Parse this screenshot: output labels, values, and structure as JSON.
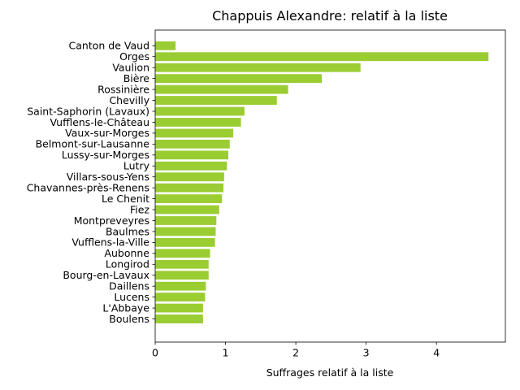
{
  "chart_data": {
    "type": "bar",
    "orientation": "horizontal",
    "title": "Chappuis Alexandre: relatif à la liste",
    "xlabel": "Suffrages relatif à la liste",
    "ylabel": "",
    "xlim": [
      0,
      4.98
    ],
    "xticks": [
      0,
      1,
      2,
      3,
      4
    ],
    "grid": false,
    "bar_color": "#9acd32",
    "categories": [
      "Canton de Vaud",
      "Orges",
      "Vaulion",
      "Bière",
      "Rossinière",
      "Chevilly",
      "Saint-Saphorin (Lavaux)",
      "Vufflens-le-Château",
      "Vaux-sur-Morges",
      "Belmont-sur-Lausanne",
      "Lussy-sur-Morges",
      "Lutry",
      "Villars-sous-Yens",
      "Chavannes-près-Renens",
      "Le Chenit",
      "Fiez",
      "Montpreveyres",
      "Baulmes",
      "Vufflens-la-Ville",
      "Aubonne",
      "Longirod",
      "Bourg-en-Lavaux",
      "Daillens",
      "Lucens",
      "L'Abbaye",
      "Boulens"
    ],
    "values": [
      0.29,
      4.74,
      2.92,
      2.37,
      1.89,
      1.73,
      1.27,
      1.22,
      1.11,
      1.06,
      1.04,
      1.02,
      0.98,
      0.97,
      0.95,
      0.91,
      0.87,
      0.86,
      0.85,
      0.78,
      0.76,
      0.76,
      0.72,
      0.71,
      0.68,
      0.68
    ]
  }
}
